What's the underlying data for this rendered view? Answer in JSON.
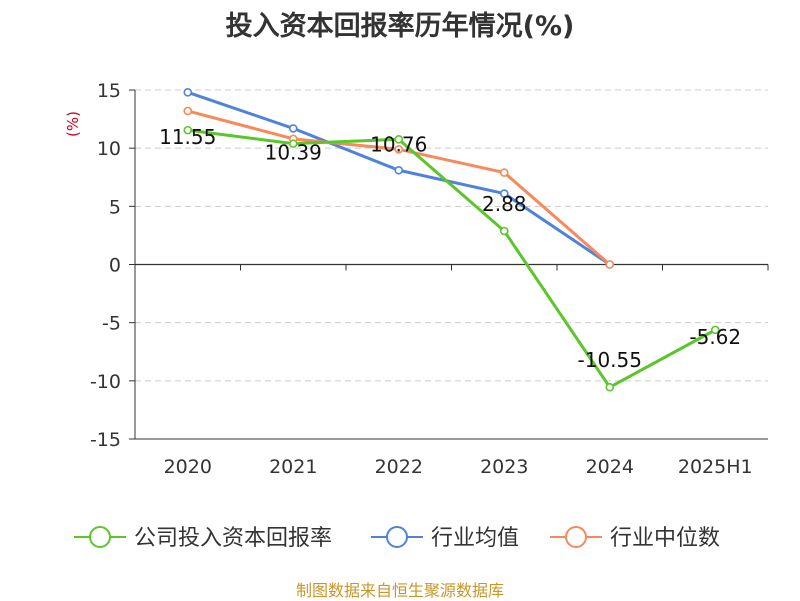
{
  "page_title": "投入资本回报率历年情况(%)",
  "source": "制图数据来自恒生聚源数据库",
  "colors": {
    "company": "#5ac62a",
    "industry_avg": "#4f82dc",
    "industry_median": "#f7895a",
    "ylabel": "#d0021b",
    "source": "#c8962a",
    "axis": "#333333",
    "grid": "#cccccc"
  },
  "chart_data": {
    "type": "line",
    "title": "投入资本回报率历年情况(%)",
    "ylabel": "(%)",
    "xlabel": "",
    "ylim": [
      -15,
      15
    ],
    "yticks": [
      15,
      10,
      5,
      0,
      -5,
      -10,
      -15
    ],
    "grid": true,
    "legend_position": "bottom",
    "categories": [
      "2020",
      "2021",
      "2022",
      "2023",
      "2024",
      "2025H1"
    ],
    "series": [
      {
        "name": "公司投入资本回报率",
        "values": [
          11.55,
          10.39,
          10.76,
          2.88,
          -10.55,
          -5.62
        ],
        "labels": [
          "11.55",
          "10.39",
          "10.76",
          "2.88",
          "-10.55",
          "-5.62"
        ]
      },
      {
        "name": "行业均值",
        "values": [
          14.8,
          11.7,
          8.1,
          6.1,
          0,
          null
        ]
      },
      {
        "name": "行业中位数",
        "values": [
          13.2,
          10.8,
          9.9,
          7.9,
          0,
          null
        ]
      }
    ]
  }
}
